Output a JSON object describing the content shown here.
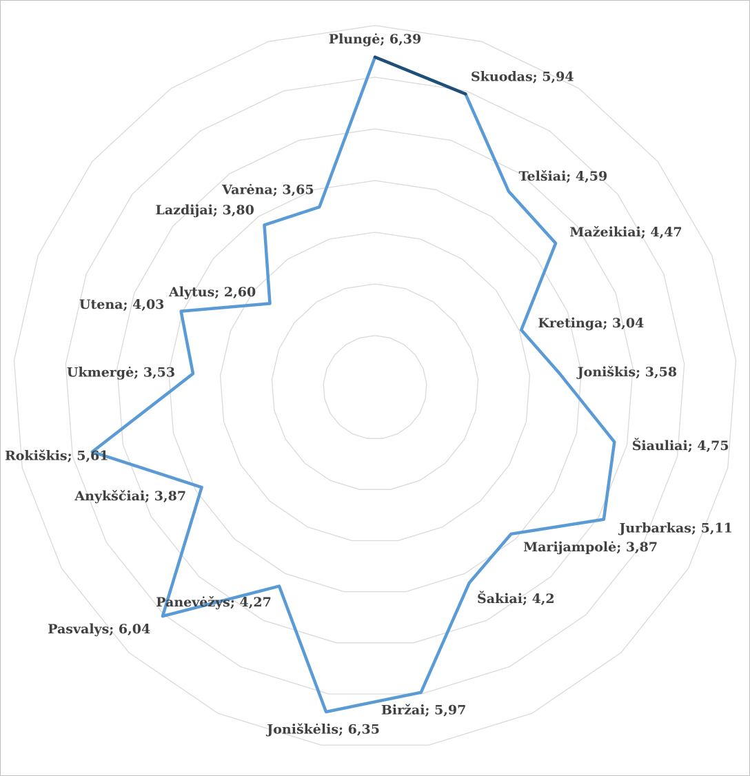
{
  "chart_data": {
    "type": "radar",
    "title": "",
    "categories": [
      "Plungė",
      "Skuodas",
      "Telšiai",
      "Mažeikiai",
      "Kretinga",
      "Joniškis",
      "Šiauliai",
      "Jurbarkas",
      "Marijampolė",
      "Šakiai",
      "Biržai",
      "Joniškėlis",
      "Panevėžys",
      "Pasvalys",
      "Anykščiai",
      "Rokiškis",
      "Ukmergė",
      "Utena",
      "Alytus",
      "Lazdijai",
      "Varėna"
    ],
    "values": [
      6.39,
      5.94,
      4.59,
      4.47,
      3.04,
      3.58,
      4.75,
      5.11,
      3.87,
      4.2,
      5.97,
      6.35,
      4.27,
      6.04,
      3.87,
      5.61,
      3.53,
      4.03,
      2.6,
      3.8,
      3.65
    ],
    "labels": [
      "Plungė; 6,39",
      "Skuodas; 5,94",
      "Telšiai; 4,59",
      "Mažeikiai; 4,47",
      "Kretinga; 3,04",
      "Joniškis; 3,58",
      "Šiauliai; 4,75",
      "Jurbarkas; 5,11",
      "Marijampolė; 3,87",
      "Šakiai; 4,2",
      "Biržai; 5,97",
      "Joniškėlis; 6,35",
      "Panevėžys; 4,27",
      "Pasvalys; 6,04",
      "Anykščiai; 3,87",
      "Rokiškis; 5,61",
      "Ukmergė; 3,53",
      "Utena; 4,03",
      "Alytus; 2,60",
      "Lazdijai; 3,80",
      "Varėna; 3,65"
    ],
    "rlim": [
      0,
      7
    ],
    "rings": 7,
    "grid": true,
    "legend": "none",
    "line_color": "#5b9bd5",
    "highlight_color": "#1f4e79",
    "grid_color": "#d9d9d9",
    "label_color": "#404040"
  }
}
